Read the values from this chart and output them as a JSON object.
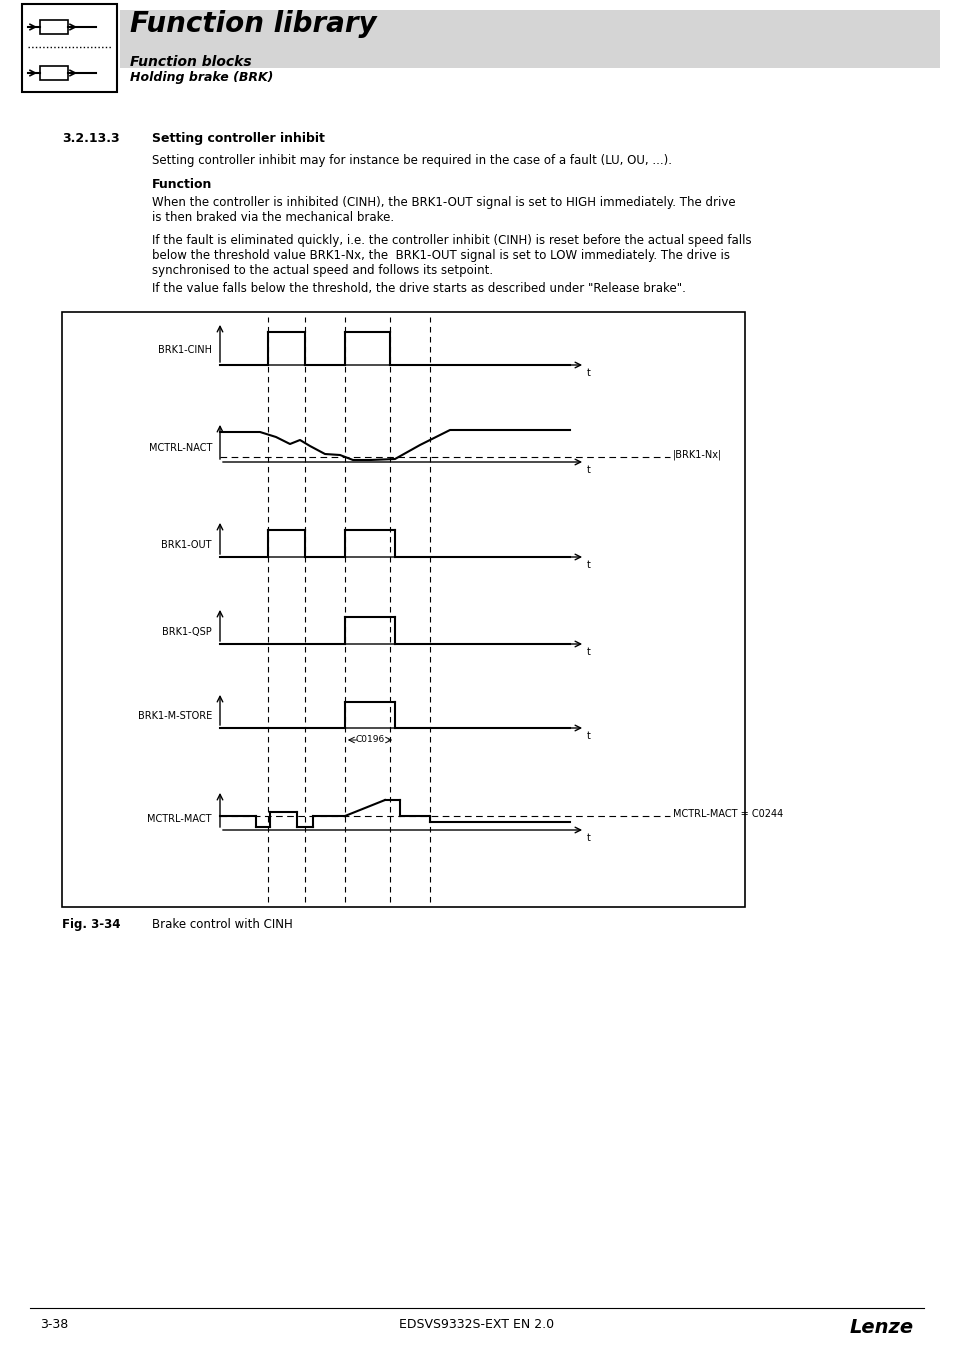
{
  "page_bg": "#ffffff",
  "header_bg": "#d8d8d8",
  "header_title": "Function library",
  "header_sub1": "Function blocks",
  "header_sub2": "Holding brake (BRK)",
  "section_number": "3.2.13.3",
  "section_title": "Setting controller inhibit",
  "para1": "Setting controller inhibit may for instance be required in the case of a fault (LU, OU, ...).",
  "func_label": "Function",
  "para2": "When the controller is inhibited (CINH), the BRK1-OUT signal is set to HIGH immediately. The drive\nis then braked via the mechanical brake.",
  "para3": "If the fault is eliminated quickly, i.e. the controller inhibit (CINH) is reset before the actual speed falls\nbelow the threshold value BRK1-Nx, the  BRK1-OUT signal is set to LOW immediately. The drive is\nsynchronised to the actual speed and follows its setpoint.",
  "para4": "If the value falls below the threshold, the drive starts as described under \"Release brake\".",
  "fig_label": "Fig. 3-34",
  "fig_caption": "Brake control with CINH",
  "footer_left": "3-38",
  "footer_center": "EDSVS9332S-EXT EN 2.0",
  "footer_right": "Lenze"
}
